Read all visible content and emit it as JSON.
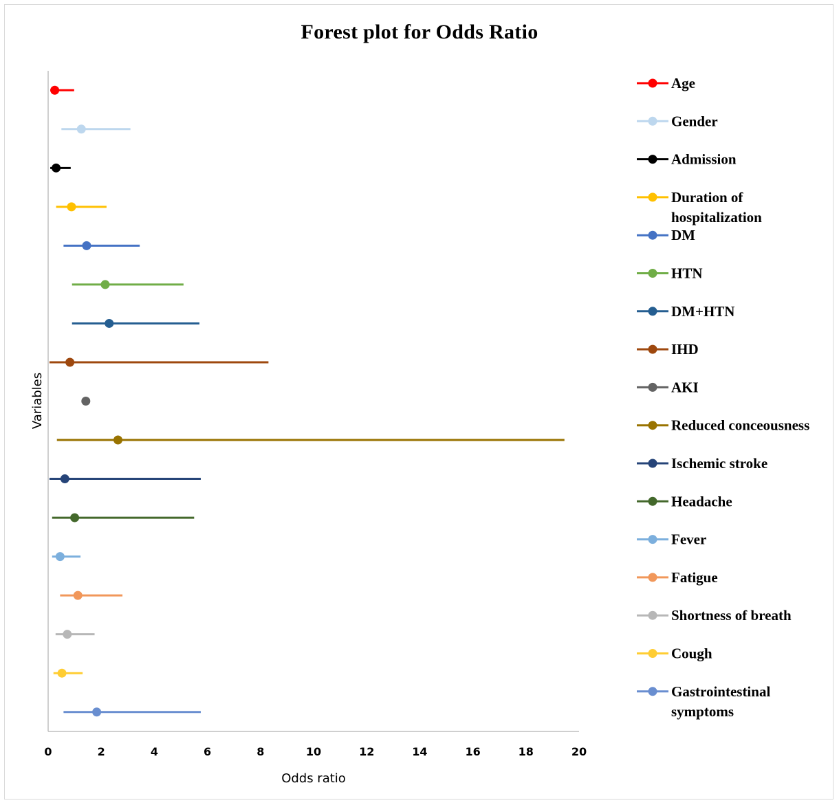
{
  "chart_data": {
    "type": "scatter",
    "title": "Forest plot for Odds Ratio",
    "xlabel": "Odds ratio",
    "ylabel": "Variables",
    "xlim": [
      0,
      20
    ],
    "xticks": [
      0,
      2,
      4,
      6,
      8,
      10,
      12,
      14,
      16,
      18,
      20
    ],
    "grid": false,
    "legend_position": "right",
    "series": [
      {
        "name": "Age",
        "color": "#ff0000",
        "or": 0.25,
        "lower": 0.08,
        "upper": 0.98,
        "label_lines": [
          "Age"
        ]
      },
      {
        "name": "Gender",
        "color": "#bdd7ee",
        "or": 1.25,
        "lower": 0.5,
        "upper": 3.1,
        "label_lines": [
          "Gender"
        ]
      },
      {
        "name": "Admission",
        "color": "#000000",
        "or": 0.3,
        "lower": 0.08,
        "upper": 0.85,
        "label_lines": [
          "Admission"
        ]
      },
      {
        "name": "Duration of hospitalization",
        "color": "#ffc000",
        "or": 0.88,
        "lower": 0.3,
        "upper": 2.2,
        "label_lines": [
          "Duration of",
          "hospitalization"
        ]
      },
      {
        "name": "DM",
        "color": "#4472c4",
        "or": 1.45,
        "lower": 0.58,
        "upper": 3.45,
        "label_lines": [
          "DM"
        ]
      },
      {
        "name": "HTN",
        "color": "#70ad47",
        "or": 2.15,
        "lower": 0.9,
        "upper": 5.1,
        "label_lines": [
          "HTN"
        ]
      },
      {
        "name": "DM+HTN",
        "color": "#255e91",
        "or": 2.3,
        "lower": 0.9,
        "upper": 5.7,
        "label_lines": [
          "DM+HTN"
        ]
      },
      {
        "name": "IHD",
        "color": "#9e480e",
        "or": 0.82,
        "lower": 0.05,
        "upper": 8.3,
        "label_lines": [
          "IHD"
        ]
      },
      {
        "name": "AKI",
        "color": "#636363",
        "or": 1.42,
        "lower": 1.3,
        "upper": 1.58,
        "label_lines": [
          "AKI"
        ]
      },
      {
        "name": "Reduced conceousness",
        "color": "#997300",
        "or": 2.63,
        "lower": 0.33,
        "upper": 19.45,
        "label_lines": [
          "Reduced conceousness"
        ]
      },
      {
        "name": "Ischemic stroke",
        "color": "#264478",
        "or": 0.63,
        "lower": 0.05,
        "upper": 5.75,
        "label_lines": [
          "Ischemic stroke"
        ]
      },
      {
        "name": "Headache",
        "color": "#43682b",
        "or": 1.0,
        "lower": 0.15,
        "upper": 5.5,
        "label_lines": [
          "Headache"
        ]
      },
      {
        "name": "Fever",
        "color": "#7cafdd",
        "or": 0.45,
        "lower": 0.15,
        "upper": 1.22,
        "label_lines": [
          "Fever"
        ]
      },
      {
        "name": "Fatigue",
        "color": "#f1975a",
        "or": 1.12,
        "lower": 0.45,
        "upper": 2.8,
        "label_lines": [
          "Fatigue"
        ]
      },
      {
        "name": "Shortness of breath",
        "color": "#b7b7b7",
        "or": 0.72,
        "lower": 0.28,
        "upper": 1.75,
        "label_lines": [
          "Shortness of breath"
        ]
      },
      {
        "name": "Cough",
        "color": "#ffcd33",
        "or": 0.52,
        "lower": 0.2,
        "upper": 1.3,
        "label_lines": [
          "Cough"
        ]
      },
      {
        "name": "Gastrointestinal symptoms",
        "color": "#698ed0",
        "or": 1.83,
        "lower": 0.58,
        "upper": 5.75,
        "label_lines": [
          "Gastrointestinal",
          "symptoms"
        ]
      }
    ]
  }
}
